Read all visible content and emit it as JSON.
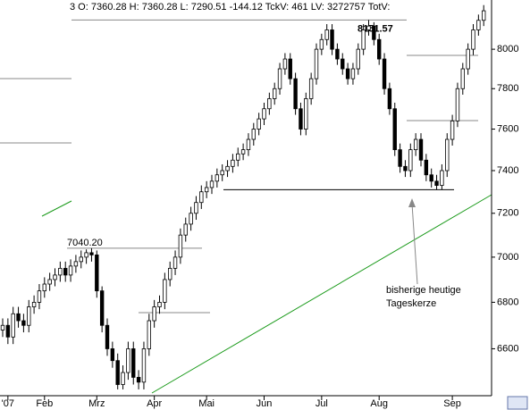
{
  "chart_data": {
    "type": "candlestick",
    "info": "3 O: 7360.28 H: 7360.28 L: 7290.51 -144.12 TckV: 461 LV: 3272757 TotV:",
    "categories": [
      null,
      "'07",
      null,
      null,
      null,
      null,
      null,
      null,
      "Feb",
      null,
      null,
      null,
      null,
      null,
      null,
      null,
      null,
      null,
      "Mrz",
      null,
      null,
      null,
      null,
      null,
      null,
      null,
      null,
      null,
      null,
      "Apr",
      null,
      null,
      null,
      null,
      null,
      null,
      null,
      null,
      null,
      "Mai",
      null,
      null,
      null,
      null,
      null,
      null,
      null,
      null,
      null,
      null,
      "Jun",
      null,
      null,
      null,
      null,
      null,
      null,
      null,
      null,
      null,
      null,
      "Jul",
      null,
      null,
      null,
      null,
      null,
      null,
      null,
      null,
      null,
      null,
      "Aug",
      null,
      null,
      null,
      null,
      null,
      null,
      null,
      null,
      null,
      null,
      null,
      null,
      null,
      "Sep",
      null,
      null,
      null,
      null,
      null,
      null
    ],
    "open": [
      6680,
      6700,
      6650,
      6750,
      6720,
      6700,
      6780,
      6800,
      6850,
      6880,
      6900,
      6920,
      6950,
      6920,
      6960,
      6980,
      7000,
      7020,
      7010,
      6850,
      6700,
      6600,
      6550,
      6450,
      6500,
      6600,
      6480,
      6460,
      6600,
      6720,
      6780,
      6800,
      6900,
      6950,
      7000,
      7100,
      7150,
      7200,
      7250,
      7300,
      7320,
      7350,
      7380,
      7400,
      7420,
      7450,
      7480,
      7500,
      7550,
      7600,
      7650,
      7700,
      7750,
      7800,
      7900,
      7950,
      7850,
      7700,
      7600,
      7750,
      7850,
      8000,
      8050,
      8100,
      8000,
      7950,
      7900,
      7850,
      7900,
      8000,
      8100,
      8120,
      8050,
      7950,
      7800,
      7700,
      7500,
      7420,
      7400,
      7500,
      7550,
      7450,
      7380,
      7350,
      7330,
      7400,
      7550,
      7640,
      7800,
      7900,
      8000,
      8100,
      8150
    ],
    "high": [
      6730,
      6730,
      6780,
      6780,
      6750,
      6810,
      6830,
      6880,
      6910,
      6930,
      6950,
      6980,
      6980,
      6990,
      7010,
      7030,
      7035,
      7040.2,
      7030,
      6870,
      6730,
      6630,
      6580,
      6530,
      6630,
      6630,
      6510,
      6630,
      6750,
      6810,
      6830,
      6930,
      6980,
      7030,
      7130,
      7180,
      7230,
      7280,
      7330,
      7350,
      7380,
      7410,
      7430,
      7450,
      7480,
      7510,
      7530,
      7580,
      7630,
      7680,
      7730,
      7780,
      7830,
      7930,
      7980,
      7980,
      7880,
      7730,
      7780,
      7880,
      8030,
      8080,
      8130,
      8130,
      8030,
      7980,
      7930,
      7930,
      8030,
      8130,
      8151.57,
      8140,
      8080,
      7980,
      7830,
      7730,
      7530,
      7450,
      7530,
      7580,
      7580,
      7480,
      7410,
      7380,
      7430,
      7580,
      7670,
      7830,
      7930,
      8030,
      8130,
      8180,
      8230
    ],
    "low": [
      6650,
      6620,
      6620,
      6690,
      6670,
      6670,
      6750,
      6770,
      6820,
      6850,
      6870,
      6890,
      6890,
      6890,
      6930,
      6950,
      6970,
      6980,
      6820,
      6670,
      6570,
      6520,
      6430,
      6430,
      6470,
      6450,
      6430,
      6430,
      6570,
      6690,
      6750,
      6770,
      6870,
      6920,
      6970,
      7070,
      7120,
      7170,
      7220,
      7270,
      7290,
      7320,
      7350,
      7370,
      7390,
      7420,
      7450,
      7470,
      7520,
      7570,
      7620,
      7670,
      7720,
      7770,
      7870,
      7820,
      7670,
      7570,
      7570,
      7720,
      7820,
      7970,
      8020,
      7970,
      7920,
      7870,
      7820,
      7820,
      7870,
      7970,
      8070,
      8020,
      7920,
      7770,
      7670,
      7470,
      7390,
      7370,
      7370,
      7470,
      7420,
      7350,
      7320,
      7310,
      7310,
      7370,
      7520,
      7610,
      7770,
      7870,
      7970,
      8070,
      8120
    ],
    "close": [
      6700,
      6650,
      6750,
      6720,
      6700,
      6780,
      6800,
      6850,
      6880,
      6900,
      6920,
      6950,
      6920,
      6960,
      6980,
      7000,
      7020,
      7010,
      6850,
      6700,
      6600,
      6550,
      6450,
      6500,
      6600,
      6480,
      6460,
      6600,
      6720,
      6780,
      6800,
      6900,
      6950,
      7000,
      7100,
      7150,
      7200,
      7250,
      7300,
      7320,
      7350,
      7380,
      7400,
      7420,
      7450,
      7480,
      7500,
      7550,
      7600,
      7650,
      7700,
      7750,
      7800,
      7900,
      7950,
      7850,
      7700,
      7600,
      7750,
      7850,
      8000,
      8050,
      8100,
      8000,
      7950,
      7900,
      7850,
      7900,
      8000,
      8100,
      8120,
      8050,
      7950,
      7800,
      7700,
      7500,
      7420,
      7400,
      7500,
      7550,
      7450,
      7380,
      7350,
      7330,
      7400,
      7550,
      7640,
      7800,
      7900,
      8000,
      8100,
      8150,
      8200
    ],
    "ylim": [
      6415,
      8257
    ],
    "yticks": [
      6600,
      6800,
      7000,
      7200,
      7400,
      7600,
      7800,
      8000
    ],
    "log_scale": true,
    "annotations": [
      {
        "label": "7040.20",
        "value": 7040.2
      },
      {
        "label": "8151.57",
        "value": 8151.57
      }
    ],
    "arrow_note": [
      "bisherige heutige",
      "Tageskerze"
    ],
    "trend_color": "#1a9a1a"
  }
}
